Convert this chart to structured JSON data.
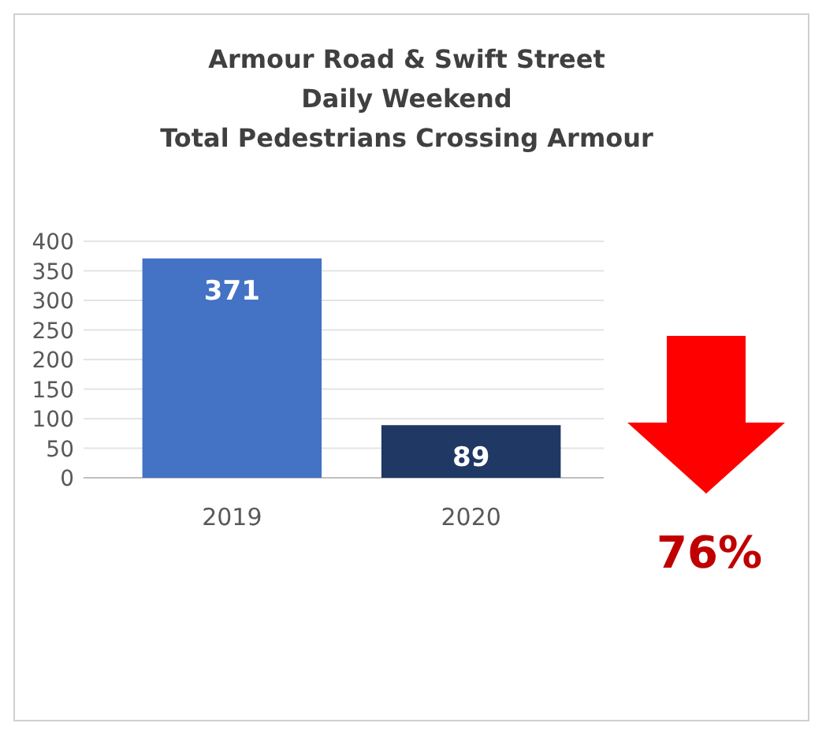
{
  "chart_data": {
    "type": "bar",
    "title": "Armour Road & Swift Street\nDaily Weekend\nTotal Pedestrians Crossing Armour",
    "categories": [
      "2019",
      "2020"
    ],
    "values": [
      371,
      89
    ],
    "colors": [
      "#4472c4",
      "#1f3864"
    ],
    "ylim": [
      0,
      400
    ],
    "yticks": [
      0,
      50,
      100,
      150,
      200,
      250,
      300,
      350,
      400
    ],
    "grid": "y",
    "data_labels": true,
    "annotations": [
      "76%"
    ]
  }
}
